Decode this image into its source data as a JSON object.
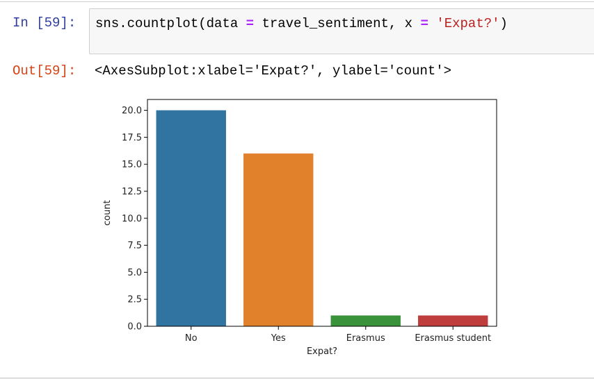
{
  "input_cell": {
    "prompt": "In [59]:",
    "code": {
      "fn": "sns.countplot(data ",
      "op1": "=",
      "mid": " travel_sentiment, x ",
      "op2": "=",
      "str": "'Expat?'",
      "end": ")"
    }
  },
  "output_cell": {
    "prompt": "Out[59]:",
    "text": "<AxesSubplot:xlabel='Expat?', ylabel='count'>"
  },
  "chart_data": {
    "type": "bar",
    "categories": [
      "No",
      "Yes",
      "Erasmus",
      "Erasmus student"
    ],
    "values": [
      20,
      16,
      1,
      1
    ],
    "colors": [
      "#3274a1",
      "#e1812c",
      "#3a923a",
      "#c03d3e"
    ],
    "xlabel": "Expat?",
    "ylabel": "count",
    "ylim": [
      0,
      21
    ],
    "yticks": [
      "0.0",
      "2.5",
      "5.0",
      "7.5",
      "10.0",
      "12.5",
      "15.0",
      "17.5",
      "20.0"
    ],
    "grid": false
  }
}
